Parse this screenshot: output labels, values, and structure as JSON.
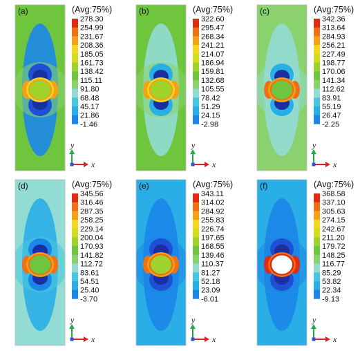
{
  "palette": [
    "#1a2fa0",
    "#1f4fd6",
    "#1b86e8",
    "#2aaee6",
    "#49c6df",
    "#92dcd4",
    "#8bd16e",
    "#6fc53e",
    "#9fd22a",
    "#d2dd22",
    "#f2d81f",
    "#f5a118",
    "#f07015",
    "#e02a14"
  ],
  "avg_label": "(Avg:75%)",
  "axis_labels": {
    "y": "y",
    "x": "x"
  },
  "panels": [
    {
      "label": "(a)",
      "field_level": 7,
      "mid_level": 2,
      "inner_level": 1,
      "ring_level": 11,
      "hole_level": 8,
      "hole": true,
      "ticks": [
        "278.30",
        "254.99",
        "231.67",
        "208.36",
        "185.05",
        "161.73",
        "138.42",
        "115.11",
        "91.80",
        "68.48",
        "45.17",
        "21.86",
        "-1.46"
      ]
    },
    {
      "label": "(b)",
      "field_level": 7,
      "mid_level": 5,
      "inner_level": 3,
      "ring_level": 11,
      "hole_level": 8,
      "hole": true,
      "ticks": [
        "322.60",
        "295.47",
        "268.34",
        "241.21",
        "214.07",
        "186.94",
        "159.81",
        "132.68",
        "105.55",
        "78.42",
        "51.29",
        "24.15",
        "-2.98"
      ]
    },
    {
      "label": "(c)",
      "field_level": 6,
      "mid_level": 5,
      "inner_level": 3,
      "ring_level": 12,
      "hole_level": 7,
      "hole": true,
      "ticks": [
        "342.36",
        "313.64",
        "284.93",
        "256.21",
        "227.49",
        "198.77",
        "170.06",
        "141.34",
        "112.62",
        "83.91",
        "55.19",
        "26.47",
        "-2.25"
      ]
    },
    {
      "label": "(d)",
      "field_level": 5,
      "mid_level": 3,
      "inner_level": 2,
      "ring_level": 12,
      "hole_level": 7,
      "hole": true,
      "ticks": [
        "345.56",
        "316.46",
        "287.35",
        "258.25",
        "229.14",
        "200.04",
        "170.93",
        "141.82",
        "112.72",
        "83.61",
        "54.51",
        "25.40",
        "-3.70"
      ]
    },
    {
      "label": "(e)",
      "field_level": 3,
      "mid_level": 2,
      "inner_level": 1,
      "ring_level": 12,
      "hole_level": 8,
      "hole": true,
      "ticks": [
        "343.11",
        "314.02",
        "284.92",
        "255.83",
        "226.74",
        "197.65",
        "168.55",
        "139.46",
        "110.37",
        "81.27",
        "52.18",
        "23.09",
        "-6.01"
      ]
    },
    {
      "label": "(f)",
      "field_level": 3,
      "mid_level": 2,
      "inner_level": 1,
      "ring_level": 13,
      "hole_level": -1,
      "hole": true,
      "ticks": [
        "368.58",
        "337.10",
        "305.63",
        "274.15",
        "242.67",
        "211.20",
        "179.72",
        "148.25",
        "116.77",
        "85.29",
        "53.82",
        "22.34",
        "-9.13"
      ]
    }
  ]
}
